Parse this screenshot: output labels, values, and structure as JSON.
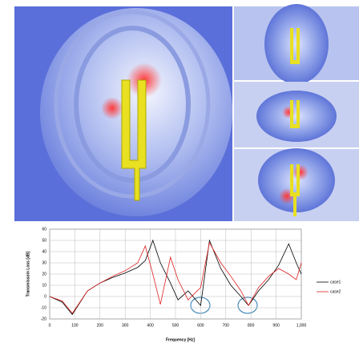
{
  "chart_data": {
    "type": "line",
    "xlabel": "Frequency [Hz]",
    "ylabel": "Transmissoin Loss [dB]",
    "x": [
      0,
      50,
      90,
      150,
      200,
      250,
      300,
      350,
      380,
      410,
      440,
      480,
      510,
      550,
      600,
      635,
      680,
      720,
      760,
      790,
      830,
      870,
      910,
      950,
      980,
      1000
    ],
    "series": [
      {
        "name": "case1",
        "color": "#000000",
        "values": [
          0,
          -5,
          -16,
          5,
          12,
          17,
          21,
          26,
          32,
          50,
          30,
          12,
          -3,
          5,
          -8,
          50,
          25,
          10,
          0,
          -8,
          5,
          15,
          28,
          47,
          30,
          20
        ]
      },
      {
        "name": "case2",
        "color": "#e02020",
        "values": [
          0,
          -4,
          -15,
          5,
          12,
          18,
          23,
          30,
          45,
          20,
          -7,
          35,
          15,
          -3,
          8,
          48,
          30,
          18,
          5,
          -8,
          8,
          18,
          25,
          20,
          15,
          30
        ]
      }
    ],
    "xlim": [
      0,
      1000
    ],
    "ylim": [
      -20,
      60
    ],
    "xticks": [
      0,
      100,
      200,
      300,
      400,
      500,
      600,
      700,
      800,
      900,
      {
        "value": 1000,
        "label": "1,000"
      }
    ],
    "yticks": [
      -20,
      -10,
      0,
      10,
      20,
      30,
      40,
      50,
      60
    ],
    "grid": true,
    "legend": "right"
  }
}
